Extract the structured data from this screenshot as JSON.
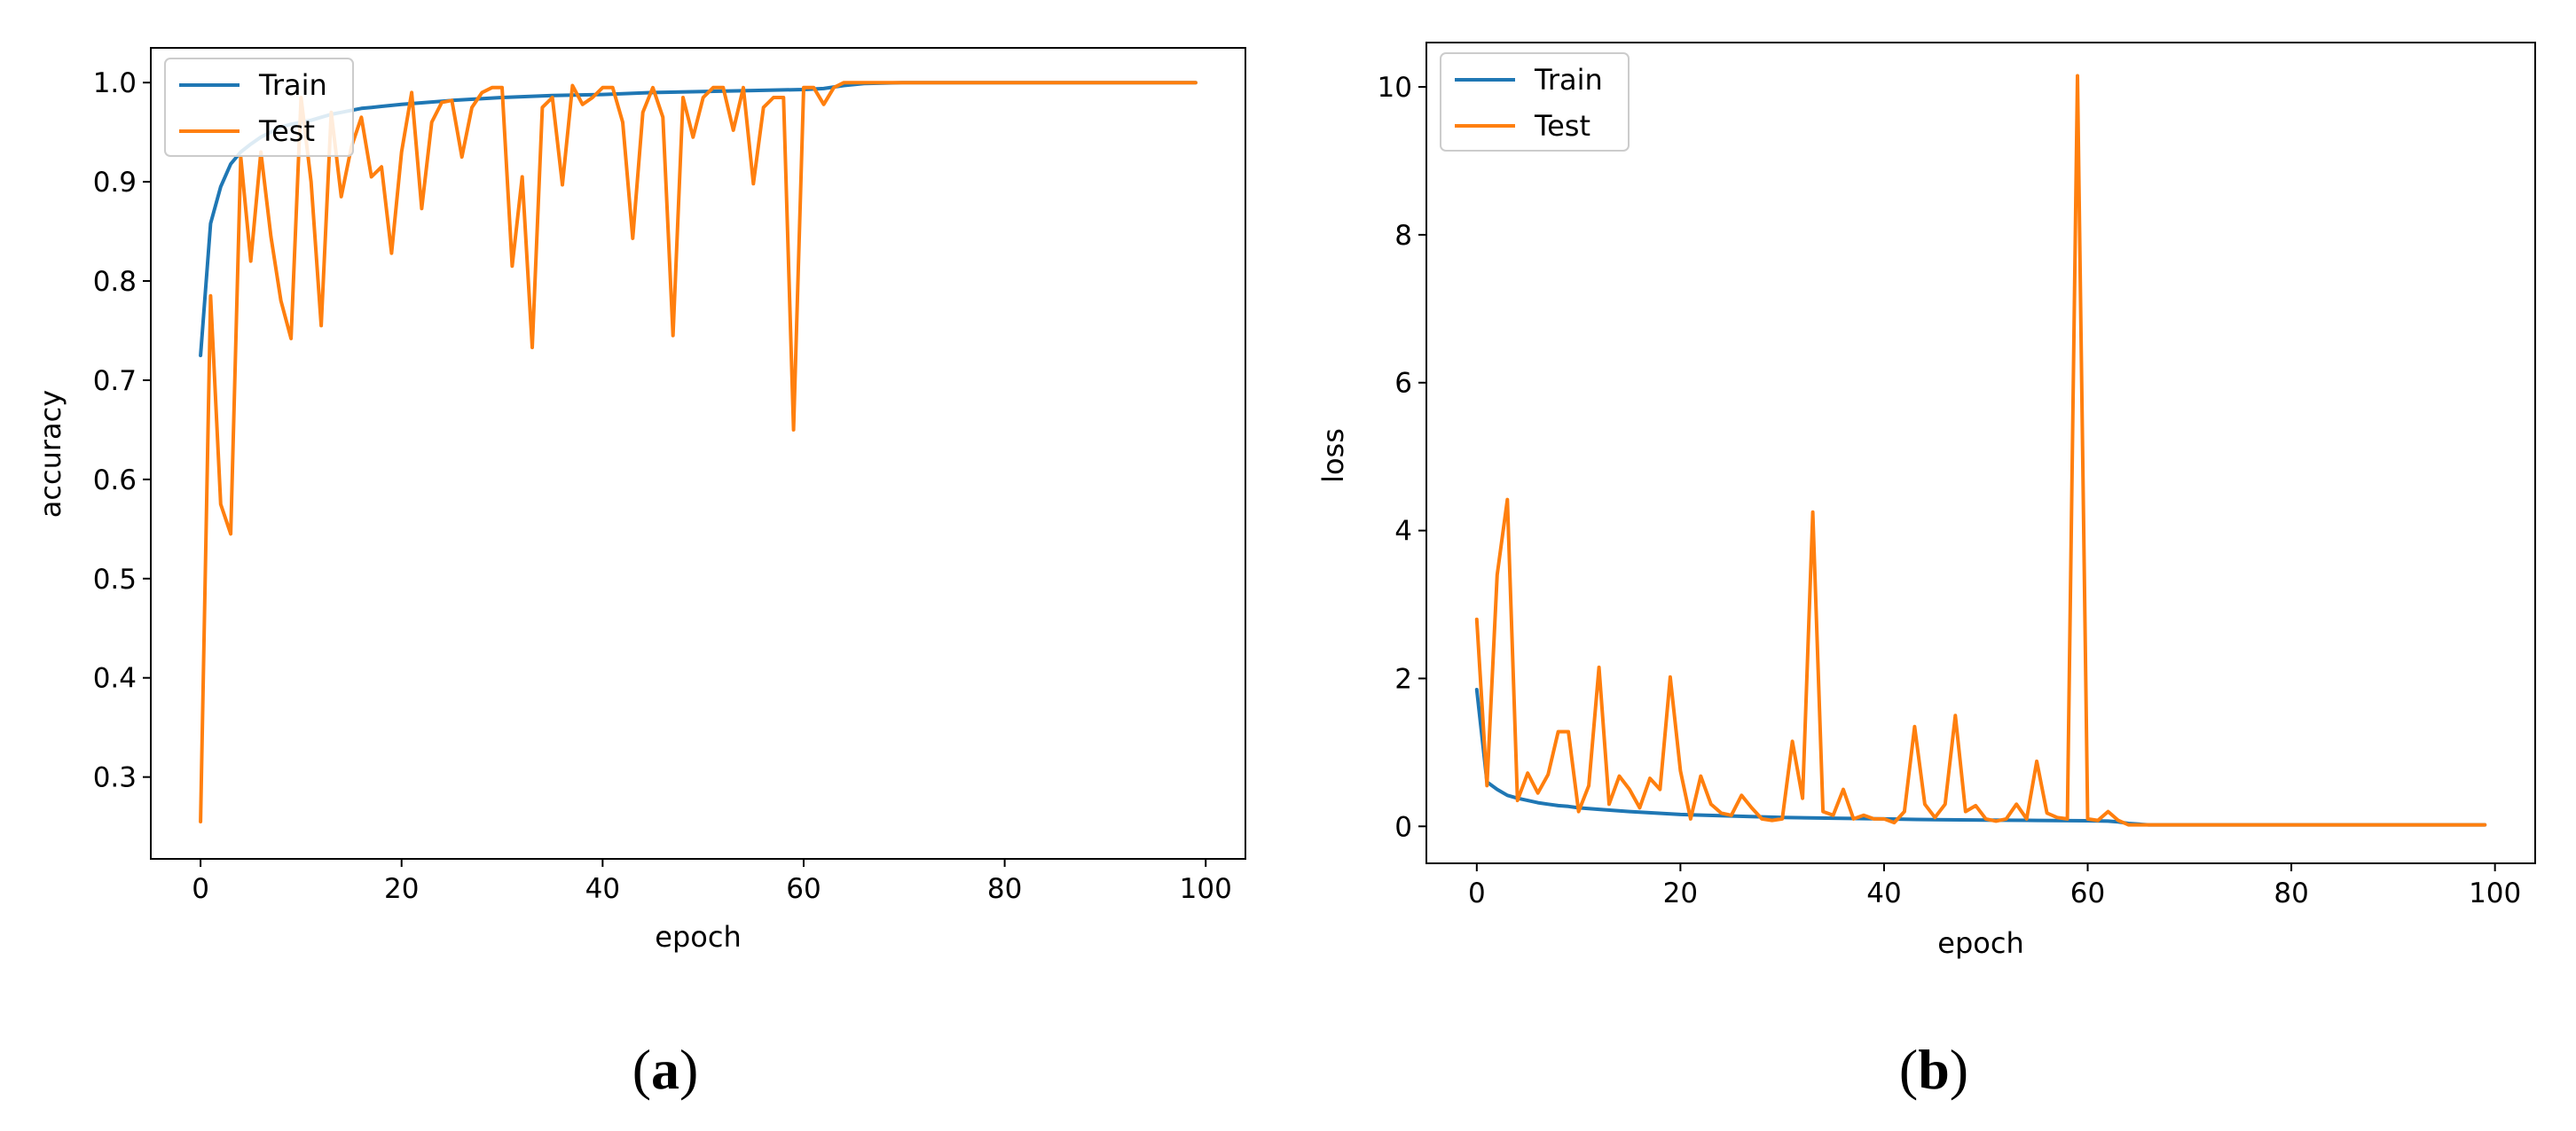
{
  "colors": {
    "train": "#1f77b4",
    "test": "#ff7f0e"
  },
  "chart_data": [
    {
      "type": "line",
      "panel_label": "a",
      "xlabel": "epoch",
      "ylabel": "accuracy",
      "xlim": [
        -4.95,
        103.95
      ],
      "ylim": [
        0.2175,
        1.035
      ],
      "xticks": [
        "0",
        "20",
        "40",
        "60",
        "80",
        "100"
      ],
      "yticks": [
        "0.3",
        "0.4",
        "0.5",
        "0.6",
        "0.7",
        "0.8",
        "0.9",
        "1.0"
      ],
      "legend": {
        "position": "top-left",
        "entries": [
          "Train",
          "Test"
        ]
      },
      "grid": false,
      "series": [
        {
          "name": "Train",
          "x": [
            0,
            1,
            2,
            3,
            4,
            5,
            6,
            7,
            8,
            9,
            10,
            11,
            12,
            13,
            14,
            15,
            16,
            17,
            18,
            19,
            20,
            25,
            30,
            35,
            40,
            45,
            50,
            55,
            60,
            62,
            64,
            65,
            66,
            70,
            80,
            90,
            99
          ],
          "y": [
            0.725,
            0.858,
            0.895,
            0.918,
            0.93,
            0.938,
            0.945,
            0.95,
            0.955,
            0.958,
            0.96,
            0.962,
            0.965,
            0.968,
            0.97,
            0.972,
            0.974,
            0.975,
            0.976,
            0.977,
            0.978,
            0.982,
            0.985,
            0.987,
            0.988,
            0.99,
            0.991,
            0.992,
            0.993,
            0.994,
            0.997,
            0.998,
            0.999,
            1.0,
            1.0,
            1.0,
            1.0
          ]
        },
        {
          "name": "Test",
          "x": [
            0,
            1,
            2,
            3,
            4,
            5,
            6,
            7,
            8,
            9,
            10,
            11,
            12,
            13,
            14,
            15,
            16,
            17,
            18,
            19,
            20,
            21,
            22,
            23,
            24,
            25,
            26,
            27,
            28,
            29,
            30,
            31,
            32,
            33,
            34,
            35,
            36,
            37,
            38,
            39,
            40,
            41,
            42,
            43,
            44,
            45,
            46,
            47,
            48,
            49,
            50,
            51,
            52,
            53,
            54,
            55,
            56,
            57,
            58,
            59,
            60,
            61,
            62,
            63,
            64,
            65,
            66,
            70,
            80,
            90,
            99
          ],
          "y": [
            0.255,
            0.785,
            0.575,
            0.545,
            0.925,
            0.82,
            0.93,
            0.845,
            0.78,
            0.742,
            0.985,
            0.9,
            0.755,
            0.97,
            0.885,
            0.935,
            0.965,
            0.905,
            0.915,
            0.828,
            0.93,
            0.99,
            0.873,
            0.96,
            0.98,
            0.982,
            0.925,
            0.975,
            0.99,
            0.995,
            0.995,
            0.815,
            0.905,
            0.733,
            0.975,
            0.985,
            0.897,
            0.997,
            0.978,
            0.985,
            0.995,
            0.995,
            0.96,
            0.843,
            0.97,
            0.995,
            0.965,
            0.745,
            0.985,
            0.945,
            0.985,
            0.995,
            0.995,
            0.952,
            0.995,
            0.898,
            0.975,
            0.985,
            0.985,
            0.65,
            0.995,
            0.995,
            0.978,
            0.995,
            1.0,
            1.0,
            1.0,
            1.0,
            1.0,
            1.0,
            1.0
          ]
        }
      ]
    },
    {
      "type": "line",
      "panel_label": "b",
      "xlabel": "epoch",
      "ylabel": "loss",
      "xlim": [
        -4.95,
        103.95
      ],
      "ylim": [
        -0.5,
        10.6
      ],
      "xticks": [
        "0",
        "20",
        "40",
        "60",
        "80",
        "100"
      ],
      "yticks": [
        "0",
        "2",
        "4",
        "6",
        "8",
        "10"
      ],
      "legend": {
        "position": "top-left",
        "entries": [
          "Train",
          "Test"
        ]
      },
      "grid": false,
      "series": [
        {
          "name": "Train",
          "x": [
            0,
            1,
            2,
            3,
            4,
            5,
            6,
            7,
            8,
            9,
            10,
            12,
            15,
            20,
            25,
            30,
            35,
            40,
            45,
            50,
            55,
            60,
            62,
            63,
            64,
            65,
            66,
            70,
            80,
            90,
            99
          ],
          "y": [
            1.85,
            0.6,
            0.5,
            0.42,
            0.38,
            0.35,
            0.32,
            0.3,
            0.28,
            0.27,
            0.25,
            0.23,
            0.2,
            0.16,
            0.14,
            0.12,
            0.11,
            0.1,
            0.09,
            0.085,
            0.08,
            0.075,
            0.07,
            0.06,
            0.04,
            0.03,
            0.02,
            0.02,
            0.02,
            0.02,
            0.02
          ]
        },
        {
          "name": "Test",
          "x": [
            0,
            1,
            2,
            3,
            4,
            5,
            6,
            7,
            8,
            9,
            10,
            11,
            12,
            13,
            14,
            15,
            16,
            17,
            18,
            19,
            20,
            21,
            22,
            23,
            24,
            25,
            26,
            27,
            28,
            29,
            30,
            31,
            32,
            33,
            34,
            35,
            36,
            37,
            38,
            39,
            40,
            41,
            42,
            43,
            44,
            45,
            46,
            47,
            48,
            49,
            50,
            51,
            52,
            53,
            54,
            55,
            56,
            57,
            58,
            59,
            60,
            61,
            62,
            63,
            64,
            65,
            66,
            70,
            80,
            90,
            99
          ],
          "y": [
            2.8,
            0.55,
            3.4,
            4.42,
            0.35,
            0.72,
            0.45,
            0.7,
            1.28,
            1.28,
            0.2,
            0.55,
            2.15,
            0.3,
            0.68,
            0.5,
            0.25,
            0.65,
            0.5,
            2.02,
            0.75,
            0.1,
            0.68,
            0.3,
            0.18,
            0.15,
            0.42,
            0.25,
            0.1,
            0.08,
            0.1,
            1.15,
            0.38,
            4.25,
            0.2,
            0.15,
            0.5,
            0.1,
            0.15,
            0.1,
            0.1,
            0.05,
            0.2,
            1.35,
            0.3,
            0.12,
            0.3,
            1.5,
            0.2,
            0.28,
            0.1,
            0.07,
            0.1,
            0.3,
            0.1,
            0.88,
            0.18,
            0.12,
            0.1,
            10.15,
            0.1,
            0.08,
            0.2,
            0.08,
            0.02,
            0.02,
            0.02,
            0.02,
            0.02,
            0.02,
            0.02
          ]
        }
      ]
    }
  ]
}
